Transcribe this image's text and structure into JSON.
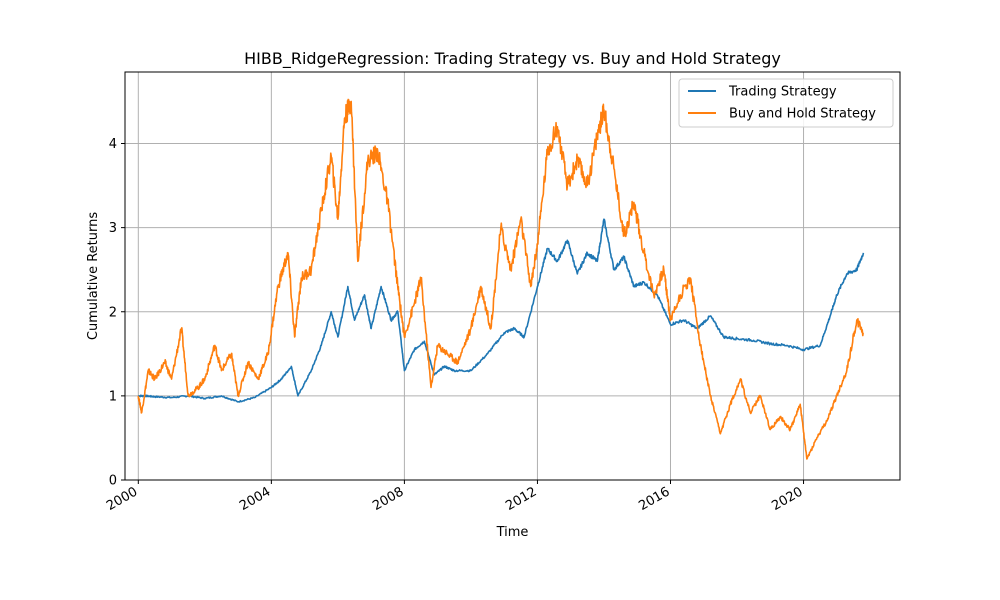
{
  "chart_data": {
    "type": "line",
    "title": "HIBB_RidgeRegression: Trading Strategy vs. Buy and Hold Strategy",
    "xlabel": "Time",
    "ylabel": "Cumulative Returns",
    "xlim": [
      1999.6,
      2022.9
    ],
    "ylim": [
      0,
      4.85
    ],
    "xticks": [
      2000,
      2004,
      2008,
      2012,
      2016,
      2020
    ],
    "xtick_labels": [
      "2000",
      "2004",
      "2008",
      "2012",
      "2016",
      "2020"
    ],
    "yticks": [
      0,
      1,
      2,
      3,
      4
    ],
    "ytick_labels": [
      "0",
      "1",
      "2",
      "3",
      "4"
    ],
    "grid": true,
    "legend_position": "top-right",
    "series": [
      {
        "name": "Trading Strategy",
        "color": "#1f77b4",
        "x": [
          2000.0,
          2000.2,
          2000.5,
          2001.0,
          2001.5,
          2002.0,
          2002.5,
          2003.0,
          2003.5,
          2004.0,
          2004.3,
          2004.6,
          2004.8,
          2005.2,
          2005.5,
          2005.8,
          2006.0,
          2006.3,
          2006.5,
          2006.8,
          2007.0,
          2007.3,
          2007.6,
          2007.8,
          2008.0,
          2008.3,
          2008.6,
          2008.9,
          2009.2,
          2009.5,
          2010.0,
          2010.5,
          2011.0,
          2011.3,
          2011.6,
          2012.0,
          2012.3,
          2012.6,
          2012.9,
          2013.2,
          2013.5,
          2013.8,
          2014.0,
          2014.3,
          2014.6,
          2014.9,
          2015.2,
          2015.6,
          2016.0,
          2016.4,
          2016.8,
          2017.2,
          2017.6,
          2018.0,
          2018.5,
          2019.0,
          2019.5,
          2020.0,
          2020.5,
          2020.8,
          2021.0,
          2021.3,
          2021.6,
          2021.8
        ],
        "y": [
          1.0,
          1.0,
          0.99,
          0.98,
          1.0,
          0.97,
          1.0,
          0.93,
          0.98,
          1.1,
          1.2,
          1.35,
          1.0,
          1.3,
          1.6,
          2.0,
          1.7,
          2.3,
          1.9,
          2.2,
          1.8,
          2.3,
          1.9,
          2.0,
          1.3,
          1.55,
          1.65,
          1.25,
          1.35,
          1.3,
          1.3,
          1.5,
          1.75,
          1.8,
          1.7,
          2.3,
          2.75,
          2.6,
          2.85,
          2.45,
          2.7,
          2.6,
          3.1,
          2.5,
          2.65,
          2.3,
          2.35,
          2.2,
          1.85,
          1.9,
          1.8,
          1.95,
          1.7,
          1.68,
          1.66,
          1.62,
          1.6,
          1.55,
          1.6,
          1.95,
          2.2,
          2.45,
          2.5,
          2.7
        ]
      },
      {
        "name": "Buy and Hold Strategy",
        "color": "#ff7f0e",
        "x": [
          2000.0,
          2000.1,
          2000.3,
          2000.5,
          2000.8,
          2001.0,
          2001.3,
          2001.5,
          2001.8,
          2002.0,
          2002.3,
          2002.5,
          2002.8,
          2003.0,
          2003.3,
          2003.6,
          2003.9,
          2004.2,
          2004.5,
          2004.7,
          2004.9,
          2005.2,
          2005.5,
          2005.8,
          2006.0,
          2006.2,
          2006.4,
          2006.6,
          2006.9,
          2007.2,
          2007.5,
          2007.8,
          2008.0,
          2008.3,
          2008.5,
          2008.8,
          2009.0,
          2009.3,
          2009.6,
          2010.0,
          2010.3,
          2010.6,
          2010.9,
          2011.2,
          2011.5,
          2011.8,
          2012.0,
          2012.3,
          2012.6,
          2012.9,
          2013.2,
          2013.5,
          2013.8,
          2014.0,
          2014.3,
          2014.6,
          2014.9,
          2015.2,
          2015.5,
          2015.8,
          2016.0,
          2016.3,
          2016.6,
          2016.9,
          2017.2,
          2017.5,
          2017.8,
          2018.1,
          2018.4,
          2018.7,
          2019.0,
          2019.3,
          2019.6,
          2019.9,
          2020.1,
          2020.4,
          2020.7,
          2021.0,
          2021.3,
          2021.6,
          2021.8
        ],
        "y": [
          1.0,
          0.8,
          1.3,
          1.2,
          1.4,
          1.2,
          1.8,
          1.0,
          1.1,
          1.2,
          1.6,
          1.3,
          1.5,
          1.0,
          1.4,
          1.2,
          1.5,
          2.3,
          2.7,
          1.7,
          2.4,
          2.5,
          3.2,
          3.85,
          3.1,
          4.3,
          4.5,
          2.6,
          3.8,
          3.9,
          3.3,
          2.3,
          1.7,
          2.1,
          2.4,
          1.1,
          1.6,
          1.5,
          1.4,
          1.8,
          2.3,
          1.8,
          3.0,
          2.5,
          3.1,
          2.3,
          2.8,
          3.9,
          4.2,
          3.5,
          3.8,
          3.5,
          4.1,
          4.4,
          3.7,
          2.9,
          3.3,
          2.7,
          2.2,
          2.5,
          1.9,
          2.2,
          2.4,
          1.6,
          1.0,
          0.55,
          0.9,
          1.2,
          0.8,
          1.0,
          0.6,
          0.75,
          0.6,
          0.9,
          0.25,
          0.5,
          0.7,
          1.0,
          1.3,
          1.9,
          1.75
        ]
      }
    ]
  }
}
